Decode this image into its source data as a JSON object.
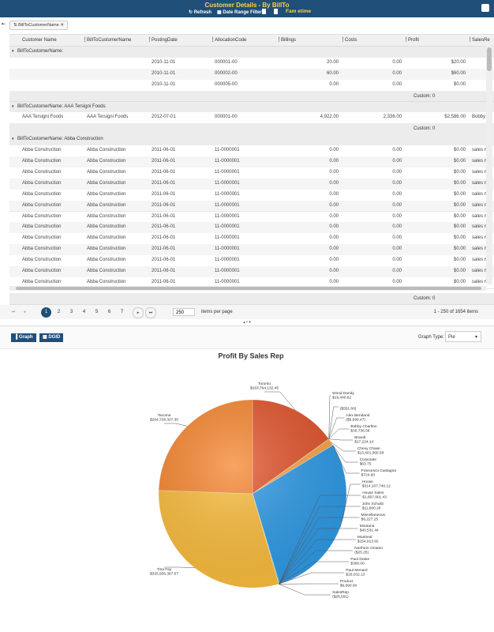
{
  "header": {
    "title": "Customer Details - By BillTo",
    "toolbar": [
      "Refresh",
      "Date Range Filter",
      "Fam etime"
    ]
  },
  "grouping": {
    "chip": "BillToCustomerName"
  },
  "table": {
    "columns": [
      "Customer Name",
      "BillToCustomerName",
      "PostingDate",
      "AllocationCode",
      "Billings",
      "Costs",
      "Profit",
      "SalesRe"
    ],
    "groups": [
      {
        "header": "BillToCustomerName:",
        "rows": [
          [
            "",
            "",
            "2010-11-01",
            "000001-00",
            "20.00",
            "0.00",
            "$20.00",
            ""
          ],
          [
            "",
            "",
            "2010-11-01",
            "000002-00",
            "60.00",
            "0.00",
            "$60.00",
            ""
          ],
          [
            "",
            "",
            "2010-11-01",
            "000005-00",
            "0.00",
            "0.00",
            "$0.00",
            ""
          ]
        ],
        "footer": "Custom: 0"
      },
      {
        "header": "BillToCustomerName: AAA Tersigni Foods",
        "rows": [
          [
            "AAA Tersigni Foods",
            "AAA Tersigni Foods",
            "2012-07-01",
            "000001-00",
            "4,922.00",
            "2,336.00",
            "$2,586.00",
            "Bobby C"
          ]
        ],
        "footer": "Custom: 0"
      },
      {
        "header": "BillToCustomerName: Abba Construction",
        "rows": [
          [
            "Abba Construction",
            "Abba Construction",
            "2011-06-01",
            "11-0000001",
            "0.00",
            "0.00",
            "$0.00",
            "sales m"
          ],
          [
            "Abba Construction",
            "Abba Construction",
            "2011-06-01",
            "11-0000001",
            "0.00",
            "0.00",
            "$0.00",
            "sales m"
          ],
          [
            "Abba Construction",
            "Abba Construction",
            "2011-06-01",
            "11-0000001",
            "0.00",
            "0.00",
            "$0.00",
            "sales m"
          ],
          [
            "Abba Construction",
            "Abba Construction",
            "2011-06-01",
            "11-0000001",
            "0.00",
            "0.00",
            "$0.00",
            "sales m"
          ],
          [
            "Abba Construction",
            "Abba Construction",
            "2011-06-01",
            "11-0000001",
            "0.00",
            "0.00",
            "$0.00",
            "sales m"
          ],
          [
            "Abba Construction",
            "Abba Construction",
            "2011-06-01",
            "11-0000001",
            "0.00",
            "0.00",
            "$0.00",
            "sales m"
          ],
          [
            "Abba Construction",
            "Abba Construction",
            "2011-06-01",
            "11-0000001",
            "0.00",
            "0.00",
            "$0.00",
            "sales m"
          ],
          [
            "Abba Construction",
            "Abba Construction",
            "2011-06-01",
            "11-0000001",
            "0.00",
            "0.00",
            "$0.00",
            "sales m"
          ],
          [
            "Abba Construction",
            "Abba Construction",
            "2011-06-01",
            "11-0000001",
            "0.00",
            "0.00",
            "$0.00",
            "sales m"
          ],
          [
            "Abba Construction",
            "Abba Construction",
            "2011-06-01",
            "11-0000001",
            "0.00",
            "0.00",
            "$0.00",
            "sales m"
          ],
          [
            "Abba Construction",
            "Abba Construction",
            "2011-06-01",
            "11-0000001",
            "0.00",
            "0.00",
            "$0.00",
            "sales m"
          ],
          [
            "Abba Construction",
            "Abba Construction",
            "2011-06-01",
            "11-0000001",
            "0.00",
            "0.00",
            "$0.00",
            "sales m"
          ],
          [
            "Abba Construction",
            "Abba Construction",
            "2011-06-01",
            "11-0000001",
            "0.00",
            "0.00",
            "$0.00",
            "sales m"
          ]
        ],
        "footer": "Custom: 0"
      }
    ]
  },
  "pager": {
    "pages": [
      1,
      2,
      3,
      4,
      5,
      6,
      7
    ],
    "page_size": 250,
    "page_size_label": "items per page",
    "summary": "1 - 250 of 1654 items"
  },
  "graph_panel": {
    "buttons": [
      "Graph",
      "DGID"
    ],
    "type_label": "Graph Type:",
    "type_value": "Pie"
  },
  "chart_data": {
    "type": "pie",
    "title": "Profit By Sales Rep",
    "categories": [
      "Toronto",
      "Wood Dandy",
      null,
      "Alex Bendand",
      "Bobby Charlton",
      "Brandt",
      "Chevy Chase",
      "Corporate",
      "Francesco Castagna",
      "House",
      "House Sales",
      "John Schultz",
      "Miscellaneous",
      "Montana",
      "Montreal",
      "Northern Ontario",
      "Paul Drake",
      "Paul Menard",
      "Product",
      "SalesRep",
      "Tina Fay",
      "Tacoma"
    ],
    "values": [
      163764132.45,
      19440.62,
      -551.6,
      -5699.47,
      30736.56,
      17224.14,
      13401065.58,
      63.75,
      724.6,
      314107740.12,
      1697901.43,
      11900.26,
      6227.15,
      40531.44,
      154913.92,
      -25.25,
      300.0,
      16032.13,
      6690.0,
      -26591,
      325935367.57,
      264728327.3
    ],
    "value_labels": [
      "$163,764,132.45",
      "$19,440.62",
      "($551.60)",
      "($5,699.47)",
      "$30,736.56",
      "$17,224.14",
      "$13,401,065.58",
      "$63.75",
      "$724.60",
      "$314,107,740.12",
      "$1,697,901.43",
      "$11,900.26",
      "$6,227.15",
      "$40,531.44",
      "$154,913.92",
      "($25.25)",
      "$300.00",
      "$16,032.13",
      "$6,690.00",
      "($26,591)",
      "$325,935,367.57",
      "$264,728,327.30"
    ],
    "colors": [
      "#e2542c",
      "#8bc34a",
      "#9c27b0",
      "#795548",
      "#00bcd4",
      "#3f51b5",
      "#f9a64a",
      "#e91e63",
      "#cddc39",
      "#2e9ae6",
      "#26a69a",
      "#ff7043",
      "#7e57c2",
      "#66bb6a",
      "#5c6bc0",
      "#ab47bc",
      "#ffa726",
      "#29b6f6",
      "#9ccc65",
      "#8d6e63",
      "#fbbd3c",
      "#f7862f"
    ]
  }
}
